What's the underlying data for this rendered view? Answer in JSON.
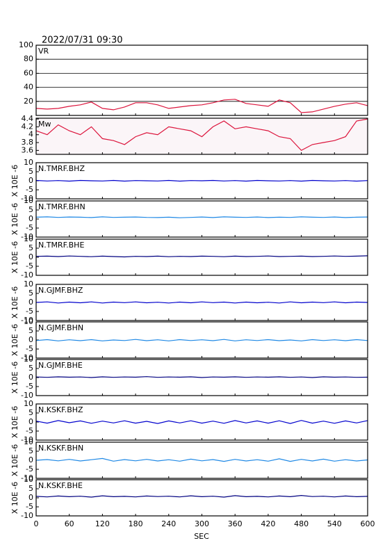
{
  "chart_data": {
    "type": "line",
    "title": "2022/07/31 09:30",
    "xlabel": "SEC",
    "xlim": [
      0,
      600
    ],
    "xticks": [
      0,
      60,
      120,
      180,
      240,
      300,
      360,
      420,
      480,
      540,
      600
    ],
    "x": [
      0,
      20,
      40,
      60,
      80,
      100,
      120,
      140,
      160,
      180,
      200,
      220,
      240,
      260,
      280,
      300,
      320,
      340,
      360,
      380,
      400,
      420,
      440,
      460,
      480,
      500,
      520,
      540,
      560,
      580,
      600
    ],
    "panels": [
      {
        "label": "VR",
        "ylim": [
          0,
          100
        ],
        "yticks": [
          20,
          40,
          60,
          80,
          100
        ],
        "grid": true,
        "background": "#ffffff",
        "series": [
          {
            "color": "#dc143c",
            "values": [
              10,
              9,
              10,
              13,
              15,
              19,
              10,
              8,
              12,
              18,
              18,
              15,
              10,
              12,
              14,
              15,
              18,
              22,
              23,
              17,
              15,
              13,
              22,
              18,
              4,
              5,
              9,
              13,
              16,
              18,
              14
            ]
          }
        ]
      },
      {
        "label": "Mw",
        "ylim": [
          3.5,
          4.42
        ],
        "yticks": [
          3.6,
          3.8,
          4.0,
          4.2,
          4.4
        ],
        "grid": false,
        "background": "#fbf5f8",
        "series": [
          {
            "color": "#dc143c",
            "values": [
              4.1,
              4.0,
              4.25,
              4.1,
              4.0,
              4.2,
              3.9,
              3.85,
              3.75,
              3.95,
              4.05,
              4.0,
              4.2,
              4.15,
              4.1,
              3.95,
              4.2,
              4.35,
              4.15,
              4.2,
              4.15,
              4.1,
              3.95,
              3.9,
              3.6,
              3.75,
              3.8,
              3.85,
              3.95,
              4.35,
              4.4
            ]
          }
        ]
      },
      {
        "label": "N.TMRF.BHZ",
        "ylabel": "X 10E -6",
        "ylim": [
          -10,
          10
        ],
        "yticks": [
          -10,
          -5,
          0,
          5,
          10
        ],
        "grid": false,
        "background": "#ffffff",
        "series": [
          {
            "color": "#0000cd",
            "values": [
              0.2,
              -0.1,
              0.1,
              -0.2,
              0.2,
              0,
              -0.1,
              0.2,
              -0.2,
              0.1,
              0,
              -0.1,
              0.2,
              -0.2,
              0.1,
              0,
              0.2,
              -0.1,
              0.1,
              -0.2,
              0.2,
              0,
              -0.1,
              0.1,
              -0.2,
              0.2,
              0,
              -0.1,
              0.1,
              -0.2,
              0.1
            ]
          }
        ]
      },
      {
        "label": "N.TMRF.BHN",
        "ylabel": "X 10E -6",
        "ylim": [
          -10,
          10
        ],
        "yticks": [
          -10,
          -5,
          0,
          5,
          10
        ],
        "grid": false,
        "background": "#ffffff",
        "series": [
          {
            "color": "#1e88e5",
            "values": [
              1,
              1.2,
              0.9,
              1.1,
              1,
              0.8,
              1.2,
              0.9,
              1,
              1.1,
              0.9,
              0.8,
              1,
              0.7,
              0.9,
              1.1,
              0.8,
              1.2,
              1,
              0.9,
              1.1,
              0.8,
              1,
              0.9,
              1.2,
              1,
              0.9,
              1.1,
              0.8,
              1,
              1.1
            ]
          }
        ]
      },
      {
        "label": "N.TMRF.BHE",
        "ylabel": "X 10E -6",
        "ylim": [
          -10,
          10
        ],
        "yticks": [
          -10,
          -5,
          0,
          5,
          10
        ],
        "grid": false,
        "background": "#ffffff",
        "series": [
          {
            "color": "#000080",
            "values": [
              0.5,
              0.6,
              0.4,
              0.7,
              0.5,
              0.3,
              0.6,
              0.4,
              0.2,
              0.5,
              0.4,
              0.6,
              0.3,
              0.5,
              0.4,
              0.6,
              0.5,
              0.3,
              0.6,
              0.4,
              0.5,
              0.7,
              0.4,
              0.5,
              0.6,
              0.4,
              0.5,
              0.7,
              0.5,
              0.6,
              0.8
            ]
          }
        ]
      },
      {
        "label": "N.GJMF.BHZ",
        "ylabel": "X 10E -6",
        "ylim": [
          -10,
          10
        ],
        "yticks": [
          -10,
          -5,
          0,
          5,
          10
        ],
        "grid": false,
        "background": "#ffffff",
        "series": [
          {
            "color": "#0000cd",
            "values": [
              0,
              0.3,
              -0.3,
              0.2,
              -0.2,
              0.3,
              -0.3,
              0.2,
              -0.1,
              0.3,
              -0.2,
              0.1,
              -0.3,
              0.2,
              -0.2,
              0.3,
              -0.1,
              0.2,
              -0.3,
              0.2,
              -0.2,
              0.1,
              -0.3,
              0.3,
              -0.2,
              0.2,
              -0.1,
              0.3,
              -0.2,
              0.2,
              0
            ]
          }
        ]
      },
      {
        "label": "N.GJMF.BHN",
        "ylabel": "X 10E -6",
        "ylim": [
          -10,
          10
        ],
        "yticks": [
          -10,
          -5,
          0,
          5,
          10
        ],
        "grid": false,
        "background": "#ffffff",
        "series": [
          {
            "color": "#1e88e5",
            "values": [
              -0.3,
              0.2,
              -0.5,
              0.1,
              -0.4,
              0.2,
              -0.5,
              0,
              -0.3,
              0.3,
              -0.4,
              0.1,
              -0.5,
              0.2,
              -0.3,
              0.1,
              -0.4,
              0.3,
              -0.5,
              0.1,
              -0.3,
              0.2,
              -0.4,
              0,
              -0.5,
              0.2,
              -0.3,
              0.1,
              -0.4,
              0.2,
              -0.3
            ]
          }
        ]
      },
      {
        "label": "N.GJMF.BHE",
        "ylabel": "X 10E -6",
        "ylim": [
          -10,
          10
        ],
        "yticks": [
          -10,
          -5,
          0,
          5,
          10
        ],
        "grid": false,
        "background": "#ffffff",
        "series": [
          {
            "color": "#000080",
            "values": [
              0.3,
              0.1,
              0.4,
              0.2,
              0.3,
              0,
              0.4,
              0.1,
              0.3,
              0.2,
              0.5,
              0.1,
              0.3,
              0.2,
              0.4,
              0,
              0.3,
              0.2,
              0.4,
              0.1,
              0.3,
              0.2,
              0.4,
              0.1,
              0.3,
              0,
              0.4,
              0.2,
              0.3,
              0.1,
              0.2
            ]
          }
        ]
      },
      {
        "label": "N.KSKF.BHZ",
        "ylabel": "X 10E -6",
        "ylim": [
          -10,
          10
        ],
        "yticks": [
          -10,
          -5,
          0,
          5,
          10
        ],
        "grid": false,
        "background": "#ffffff",
        "series": [
          {
            "color": "#0000cd",
            "values": [
              0.5,
              -0.6,
              0.8,
              -0.4,
              0.6,
              -0.7,
              0.5,
              -0.5,
              0.7,
              -0.6,
              0.4,
              -0.8,
              0.6,
              -0.5,
              0.7,
              -0.6,
              0.5,
              -0.7,
              0.8,
              -0.5,
              0.6,
              -0.6,
              0.7,
              -0.8,
              0.9,
              -0.6,
              0.5,
              -0.7,
              0.6,
              -0.5,
              0.8
            ]
          }
        ]
      },
      {
        "label": "N.KSKF.BHN",
        "ylabel": "X 10E -6",
        "ylim": [
          -10,
          10
        ],
        "yticks": [
          -10,
          -5,
          0,
          5,
          10
        ],
        "grid": false,
        "background": "#ffffff",
        "series": [
          {
            "color": "#1e88e5",
            "values": [
              0,
              0.4,
              -0.3,
              0.5,
              -0.4,
              0.3,
              1,
              -0.5,
              0.4,
              -0.3,
              0.5,
              -0.4,
              0.3,
              -0.5,
              0.6,
              -0.3,
              0.4,
              -0.6,
              0.5,
              -0.4,
              0.3,
              -0.5,
              0.8,
              -0.6,
              0.5,
              -0.4,
              0.6,
              -0.5,
              0.3,
              -0.4,
              0.2
            ]
          }
        ]
      },
      {
        "label": "N.KSKF.BHE",
        "ylabel": "X 10E -6",
        "ylim": [
          -10,
          10
        ],
        "yticks": [
          -10,
          -5,
          0,
          5,
          10
        ],
        "grid": false,
        "background": "#ffffff",
        "series": [
          {
            "color": "#000080",
            "values": [
              0.8,
              0.5,
              1,
              0.6,
              0.9,
              0.4,
              1.1,
              0.6,
              0.8,
              0.5,
              1,
              0.7,
              0.9,
              0.5,
              1.1,
              0.6,
              0.9,
              0.4,
              1.2,
              0.6,
              0.8,
              0.5,
              1,
              0.6,
              1.3,
              0.7,
              0.9,
              0.5,
              1,
              0.6,
              0.8
            ]
          }
        ]
      }
    ]
  }
}
